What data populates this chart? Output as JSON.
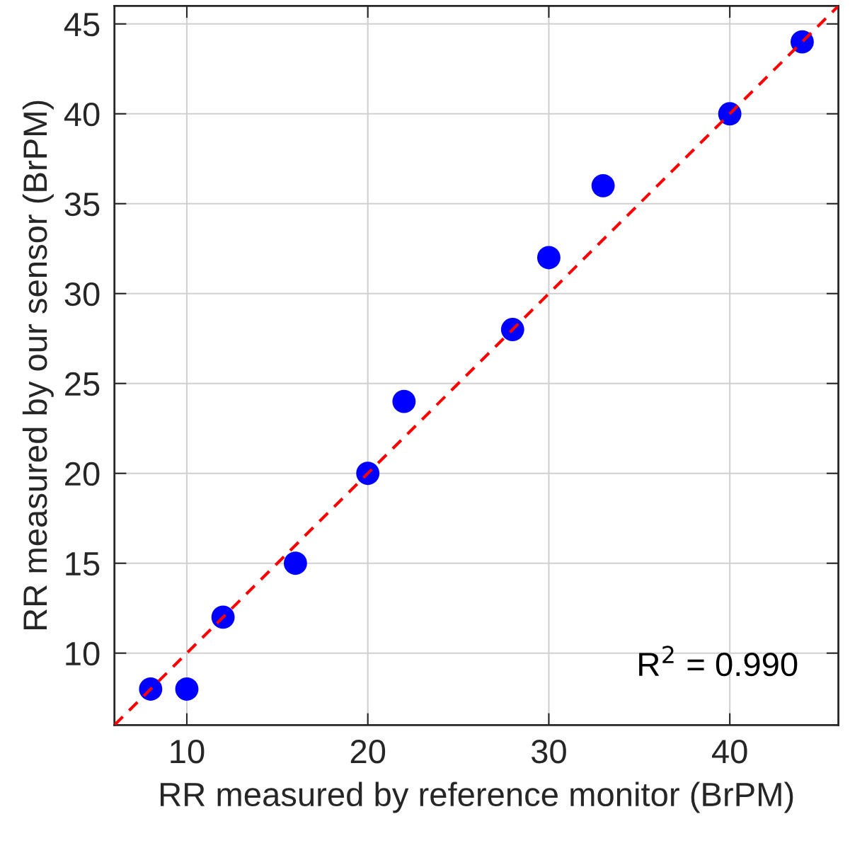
{
  "chart_data": {
    "type": "scatter",
    "xlabel": "RR measured by reference monitor (BrPM)",
    "ylabel": "RR measured by our sensor (BrPM)",
    "x": [
      8,
      10,
      12,
      16,
      20,
      22,
      28,
      30,
      33,
      40,
      44
    ],
    "series": [
      {
        "color": "#0000ff",
        "marker": "circle",
        "values": [
          8,
          8,
          12,
          15,
          20,
          24,
          28,
          32,
          36,
          40,
          44
        ]
      },
      {
        "type": "line",
        "color": "#ff0000",
        "line_style": "dashed",
        "marker": "none",
        "x": [
          6,
          46
        ],
        "values": [
          6,
          46
        ]
      }
    ],
    "annotations": [
      "R$^{2}$ = 0.990"
    ],
    "xlim": [
      6,
      46
    ],
    "ylim": [
      6,
      46
    ],
    "xticks": [
      10,
      20,
      30,
      40
    ],
    "yticks": [
      10,
      15,
      20,
      25,
      30,
      35,
      40,
      45
    ],
    "grid": true
  }
}
